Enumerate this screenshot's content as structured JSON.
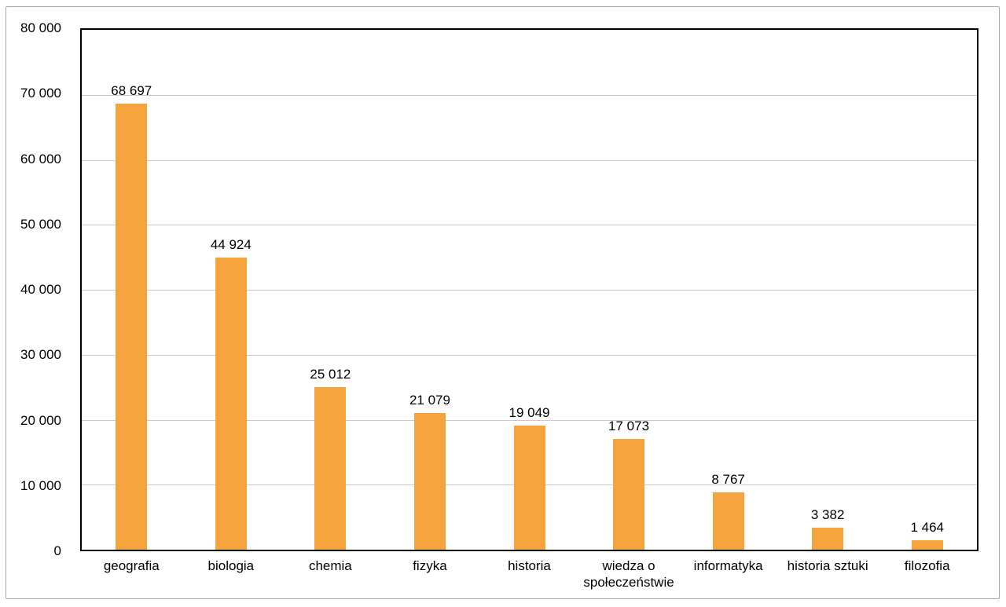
{
  "chart_data": {
    "type": "bar",
    "title": "",
    "xlabel": "",
    "ylabel": "",
    "categories": [
      "geografia",
      "biologia",
      "chemia",
      "fizyka",
      "historia",
      "wiedza o społeczeństwie",
      "informatyka",
      "historia sztuki",
      "filozofia"
    ],
    "values": [
      68697,
      44924,
      25012,
      21079,
      19049,
      17073,
      8767,
      3382,
      1464
    ],
    "value_labels": [
      "68 697",
      "44 924",
      "25 012",
      "21 079",
      "19 049",
      "17 073",
      "8 767",
      "3 382",
      "1 464"
    ],
    "y_ticks": [
      "80 000",
      "70 000",
      "60 000",
      "50 000",
      "40 000",
      "30 000",
      "20 000",
      "10 000",
      "0"
    ],
    "y_tick_values": [
      80000,
      70000,
      60000,
      50000,
      40000,
      30000,
      20000,
      10000,
      0
    ],
    "ylim": [
      0,
      80000
    ],
    "grid": "horizontal",
    "legend": "none",
    "colors": {
      "bar": "#f5a33c",
      "gridline": "#c9c9c9",
      "plot_border": "#000000",
      "frame_border": "#a6a6a6",
      "text": "#000000",
      "background": "#ffffff"
    }
  }
}
